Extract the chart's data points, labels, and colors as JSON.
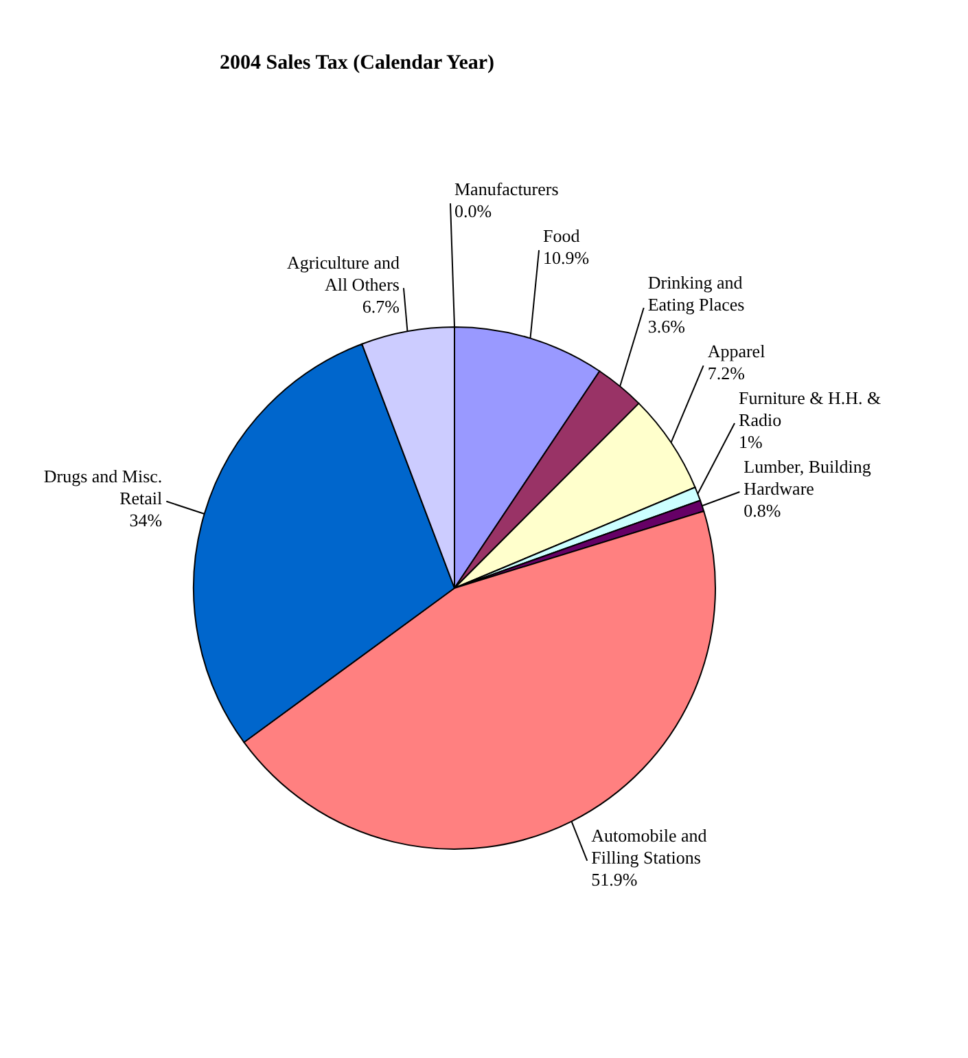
{
  "chart_data": {
    "type": "pie",
    "title": "2004 Sales Tax (Calendar Year)",
    "categories": [
      "Manufacturers",
      "Food",
      "Drinking and Eating Places",
      "Apparel",
      "Furniture & H.H. & Radio",
      "Lumber, Building Hardware",
      "Automobile and Filling Stations",
      "Drugs and Misc. Retail",
      "Agriculture and All Others"
    ],
    "values": [
      0.0,
      10.9,
      3.6,
      7.2,
      1,
      0.8,
      51.9,
      34,
      6.7
    ],
    "value_labels": [
      "0.0%",
      "10.9%",
      "3.6%",
      "7.2%",
      "1%",
      "0.8%",
      "51.9%",
      "34%",
      "6.7%"
    ],
    "colors": [
      "#9999ff",
      "#9999ff",
      "#993366",
      "#ffffcc",
      "#ccffff",
      "#660066",
      "#ff8080",
      "#0066cc",
      "#ccccff"
    ]
  }
}
